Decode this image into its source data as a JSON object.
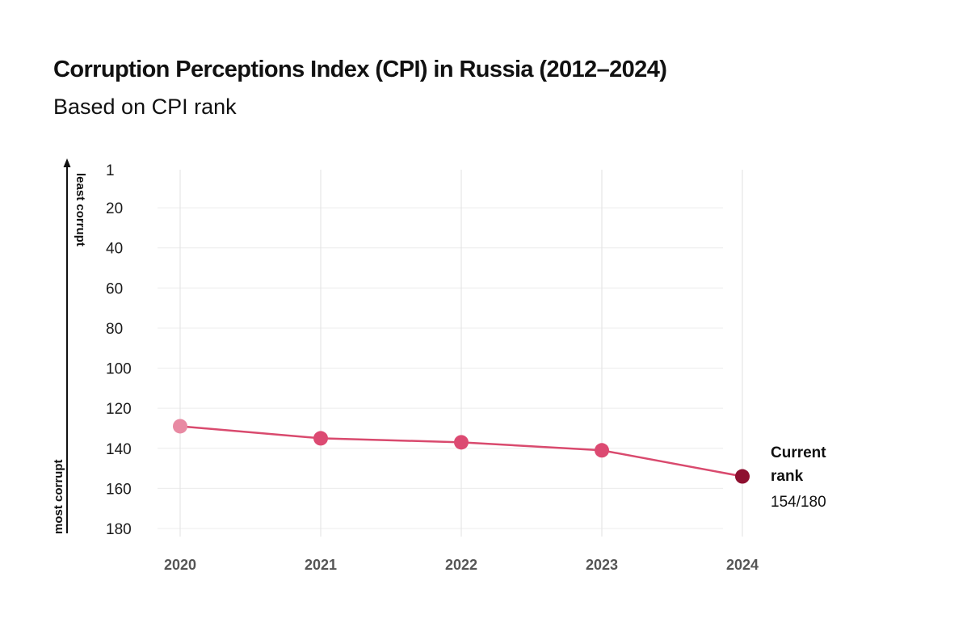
{
  "chart_data": {
    "type": "line",
    "title": "Corruption Perceptions Index (CPI) in Russia (2012–2024)",
    "subtitle": "Based on CPI rank",
    "x": [
      "2020",
      "2021",
      "2022",
      "2023",
      "2024"
    ],
    "series": [
      {
        "name": "CPI rank",
        "values": [
          129,
          135,
          137,
          141,
          154
        ]
      }
    ],
    "point_colors": [
      "#e88aa3",
      "#dc4a72",
      "#dc4a72",
      "#dc4a72",
      "#8e1030"
    ],
    "line_color": "#d94a6e",
    "ylim": [
      1,
      180
    ],
    "y_inverted": true,
    "y_ticks": [
      "1",
      "20",
      "40",
      "60",
      "80",
      "100",
      "120",
      "140",
      "160",
      "180"
    ],
    "y_tick_values": [
      1,
      20,
      40,
      60,
      80,
      100,
      120,
      140,
      160,
      180
    ],
    "ylabel_top": "least corrupt",
    "ylabel_bottom": "most corrupt",
    "annotation": {
      "heading_line1": "Current",
      "heading_line2": "rank",
      "value": "154/180"
    },
    "grid": true
  }
}
